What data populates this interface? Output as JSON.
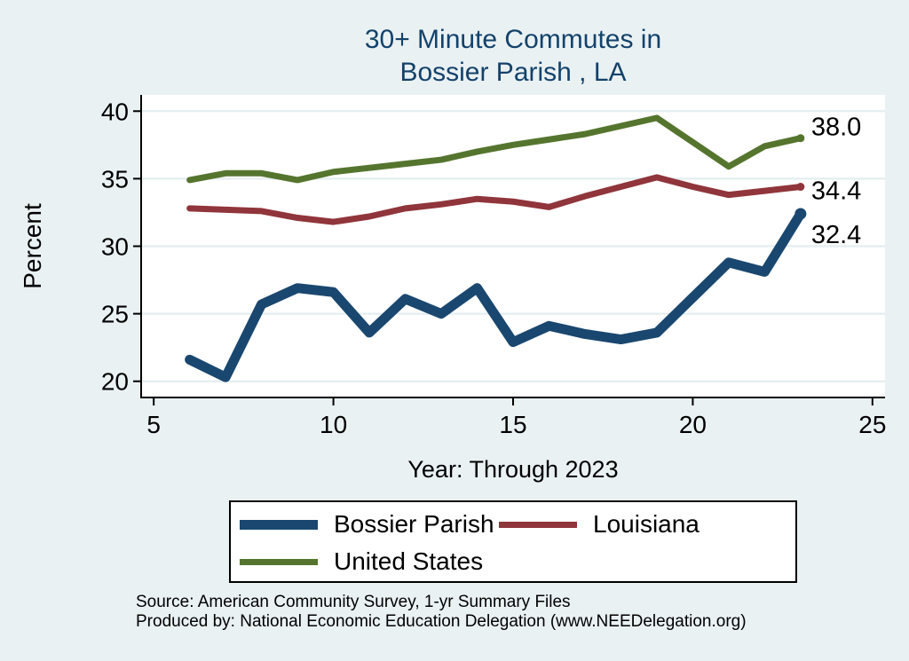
{
  "title": {
    "line1": "30+ Minute Commutes in",
    "line2": "Bossier Parish , LA"
  },
  "footer": {
    "line1": "Source: American Community Survey, 1-yr Summary Files",
    "line2": "Produced by: National Economic Education Delegation (www.NEEDelegation.org)"
  },
  "colors": {
    "background": "#eaf1f3",
    "plot_background": "#ffffff",
    "gridline": "#e4eef1",
    "axis": "#000000",
    "title_text": "#13426b"
  },
  "chart_data": {
    "type": "line",
    "title": "30+ Minute Commutes in Bossier Parish , LA",
    "xlabel": "Year: Through 2023",
    "ylabel": "Percent",
    "x": [
      6,
      7,
      8,
      9,
      10,
      11,
      12,
      13,
      14,
      15,
      16,
      17,
      18,
      19,
      20,
      21,
      22,
      23
    ],
    "x_ticks": [
      5,
      10,
      15,
      20,
      25
    ],
    "y_ticks": [
      20,
      25,
      30,
      35,
      40
    ],
    "xlim": [
      4.65,
      25.35
    ],
    "ylim": [
      18.8,
      41.2
    ],
    "grid": "horizontal",
    "legend_position": "bottom",
    "series": [
      {
        "name": "Bossier Parish",
        "color": "#1a476f",
        "line_width": 11,
        "end_label": "32.4",
        "values": [
          21.6,
          20.3,
          25.7,
          26.9,
          26.6,
          23.6,
          26.1,
          25.0,
          26.9,
          22.9,
          24.1,
          23.5,
          23.1,
          23.6,
          26.2,
          28.8,
          28.1,
          32.4
        ]
      },
      {
        "name": "Louisiana",
        "color": "#90353b",
        "line_width": 7,
        "end_label": "34.4",
        "values": [
          32.8,
          32.7,
          32.6,
          32.1,
          31.8,
          32.2,
          32.8,
          33.1,
          33.5,
          33.3,
          32.9,
          33.7,
          34.4,
          35.1,
          34.4,
          33.8,
          34.1,
          34.4
        ]
      },
      {
        "name": "United States",
        "color": "#55752f",
        "line_width": 7,
        "end_label": "38.0",
        "values": [
          34.9,
          35.4,
          35.4,
          34.9,
          35.5,
          35.8,
          36.1,
          36.4,
          37.0,
          37.5,
          37.9,
          38.3,
          38.9,
          39.5,
          37.7,
          35.9,
          37.4,
          38.0
        ]
      }
    ]
  }
}
